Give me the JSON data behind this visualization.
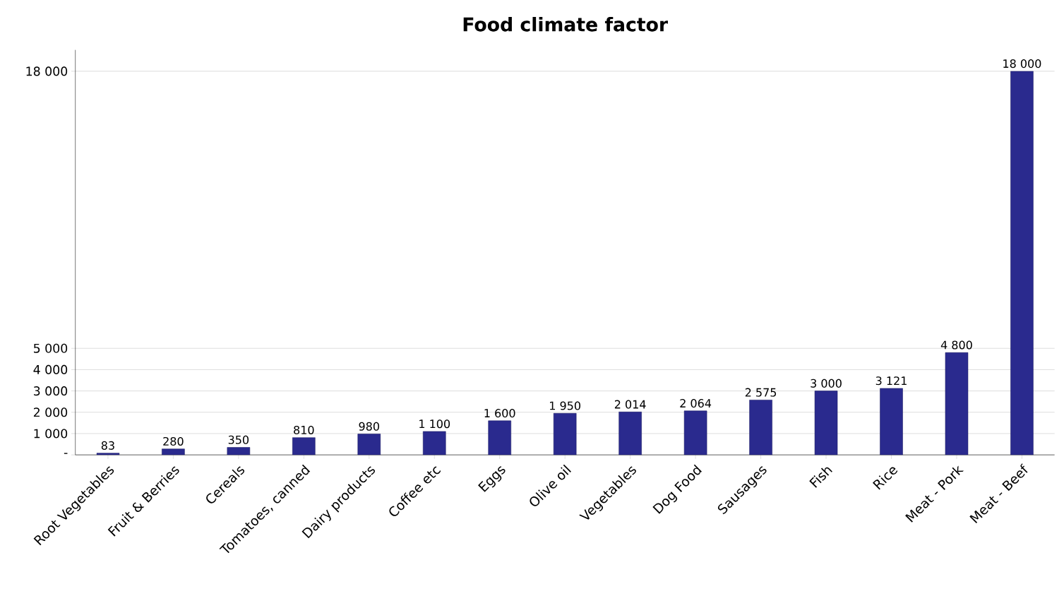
{
  "chart_data": {
    "type": "bar",
    "title": "Food climate factor",
    "categories": [
      "Root Vegetables",
      "Fruit & Berries",
      "Cereals",
      "Tomatoes, canned",
      "Dairy products",
      "Coffee etc",
      "Eggs",
      "Olive oil",
      "Vegetables",
      "Dog Food",
      "Sausages",
      "Fish",
      "Rice",
      "Meat - Pork",
      "Meat - Beef"
    ],
    "values": [
      83,
      280,
      350,
      810,
      980,
      1100,
      1600,
      1950,
      2014,
      2064,
      2575,
      3000,
      3121,
      4800,
      18000
    ],
    "value_labels": [
      "83",
      "280",
      "350",
      "810",
      "980",
      "1 100",
      "1 600",
      "1 950",
      "2 014",
      "2 064",
      "2 575",
      "3 000",
      "3 121",
      "4 800",
      "18 000"
    ],
    "color": "#2a2a8e",
    "ylim": [
      0,
      19000
    ],
    "yticks": [
      {
        "value": 0,
        "label": "-"
      },
      {
        "value": 1000,
        "label": "1 000"
      },
      {
        "value": 2000,
        "label": "2 000"
      },
      {
        "value": 3000,
        "label": "3 000"
      },
      {
        "value": 4000,
        "label": "4 000"
      },
      {
        "value": 5000,
        "label": "5 000"
      },
      {
        "value": 18000,
        "label": "18 000"
      }
    ],
    "grid": "y"
  }
}
